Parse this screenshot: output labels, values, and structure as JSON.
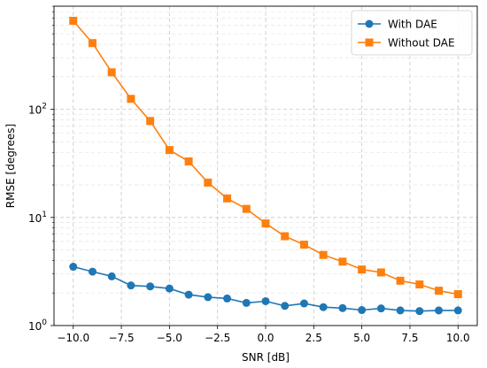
{
  "chart_data": {
    "type": "line",
    "title": "",
    "xlabel": "SNR [dB]",
    "ylabel": "RMSE [degrees]",
    "yscale": "log",
    "x": [
      -10,
      -9,
      -8,
      -7,
      -6,
      -5,
      -4,
      -3,
      -2,
      -1,
      0,
      1,
      2,
      3,
      4,
      5,
      6,
      7,
      8,
      9,
      10
    ],
    "xlim": [
      -11,
      11
    ],
    "ylim": [
      1,
      900
    ],
    "xticks": [
      -10.0,
      -7.5,
      -5.0,
      -2.5,
      0.0,
      2.5,
      5.0,
      7.5,
      10.0
    ],
    "xtick_labels": [
      "−10.0",
      "−7.5",
      "−5.0",
      "−2.5",
      "0.0",
      "2.5",
      "5.0",
      "7.5",
      "10.0"
    ],
    "yticks": [
      1,
      10,
      100
    ],
    "ytick_labels": [
      {
        "base": "10",
        "exp": "0"
      },
      {
        "base": "10",
        "exp": "1"
      },
      {
        "base": "10",
        "exp": "2"
      }
    ],
    "grid": true,
    "legend_position": "top-right",
    "series": [
      {
        "name": "With DAE",
        "color": "#1f77b4",
        "marker": "circle",
        "values": [
          3.5,
          3.15,
          2.85,
          2.35,
          2.3,
          2.2,
          1.93,
          1.83,
          1.78,
          1.62,
          1.68,
          1.52,
          1.6,
          1.48,
          1.45,
          1.39,
          1.44,
          1.38,
          1.36,
          1.38,
          1.38
        ]
      },
      {
        "name": "Without DAE",
        "color": "#ff7f0e",
        "marker": "square",
        "values": [
          660,
          410,
          220,
          125,
          78,
          42,
          33,
          21,
          15,
          12,
          8.8,
          6.7,
          5.6,
          4.5,
          3.9,
          3.3,
          3.1,
          2.6,
          2.4,
          2.1,
          1.95
        ]
      }
    ]
  }
}
